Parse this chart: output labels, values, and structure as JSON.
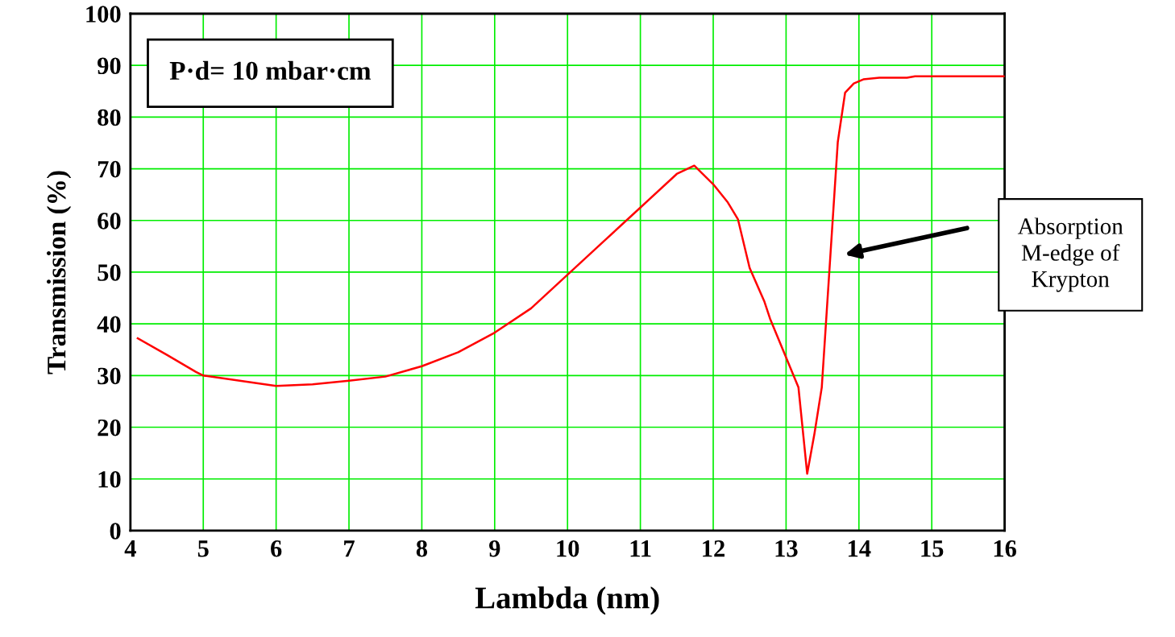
{
  "chart_data": {
    "type": "line",
    "xlabel": "Lambda (nm)",
    "ylabel": "Transmission (%)",
    "x": [
      4.1,
      4.5,
      4.9,
      5.0,
      5.5,
      6.0,
      6.5,
      7.0,
      7.5,
      8.0,
      8.5,
      9.0,
      9.5,
      10.0,
      10.5,
      11.0,
      11.5,
      11.74,
      12.0,
      12.2,
      12.34,
      12.5,
      12.7,
      12.78,
      13.17,
      13.29,
      13.39,
      13.49,
      13.71,
      13.81,
      13.93,
      14.06,
      14.28,
      14.66,
      14.77,
      16.0
    ],
    "series": [
      {
        "color": "#ff0000",
        "values": [
          37.2,
          34,
          30.7,
          30,
          29,
          28,
          28.3,
          29,
          29.8,
          31.8,
          34.5,
          38.3,
          43,
          49.5,
          56,
          62.5,
          69,
          70.6,
          67,
          63.5,
          60.2,
          50.8,
          44.4,
          41,
          27.7,
          11,
          18.8,
          27.7,
          75.2,
          84.7,
          86.5,
          87.3,
          87.6,
          87.6,
          87.9,
          87.9
        ]
      }
    ],
    "xlim": [
      4,
      16
    ],
    "xticks": [
      4,
      5,
      6,
      7,
      8,
      9,
      10,
      11,
      12,
      13,
      14,
      15,
      16
    ],
    "ylim": [
      0,
      100
    ],
    "yticks": [
      0,
      10,
      20,
      30,
      40,
      50,
      60,
      70,
      80,
      90,
      100
    ],
    "grid": true,
    "marker": "none",
    "line_style": "solid",
    "annotations": [
      "P·d= 10 mbar·cm",
      "Absorption\nM-edge of\nKrypton"
    ]
  }
}
